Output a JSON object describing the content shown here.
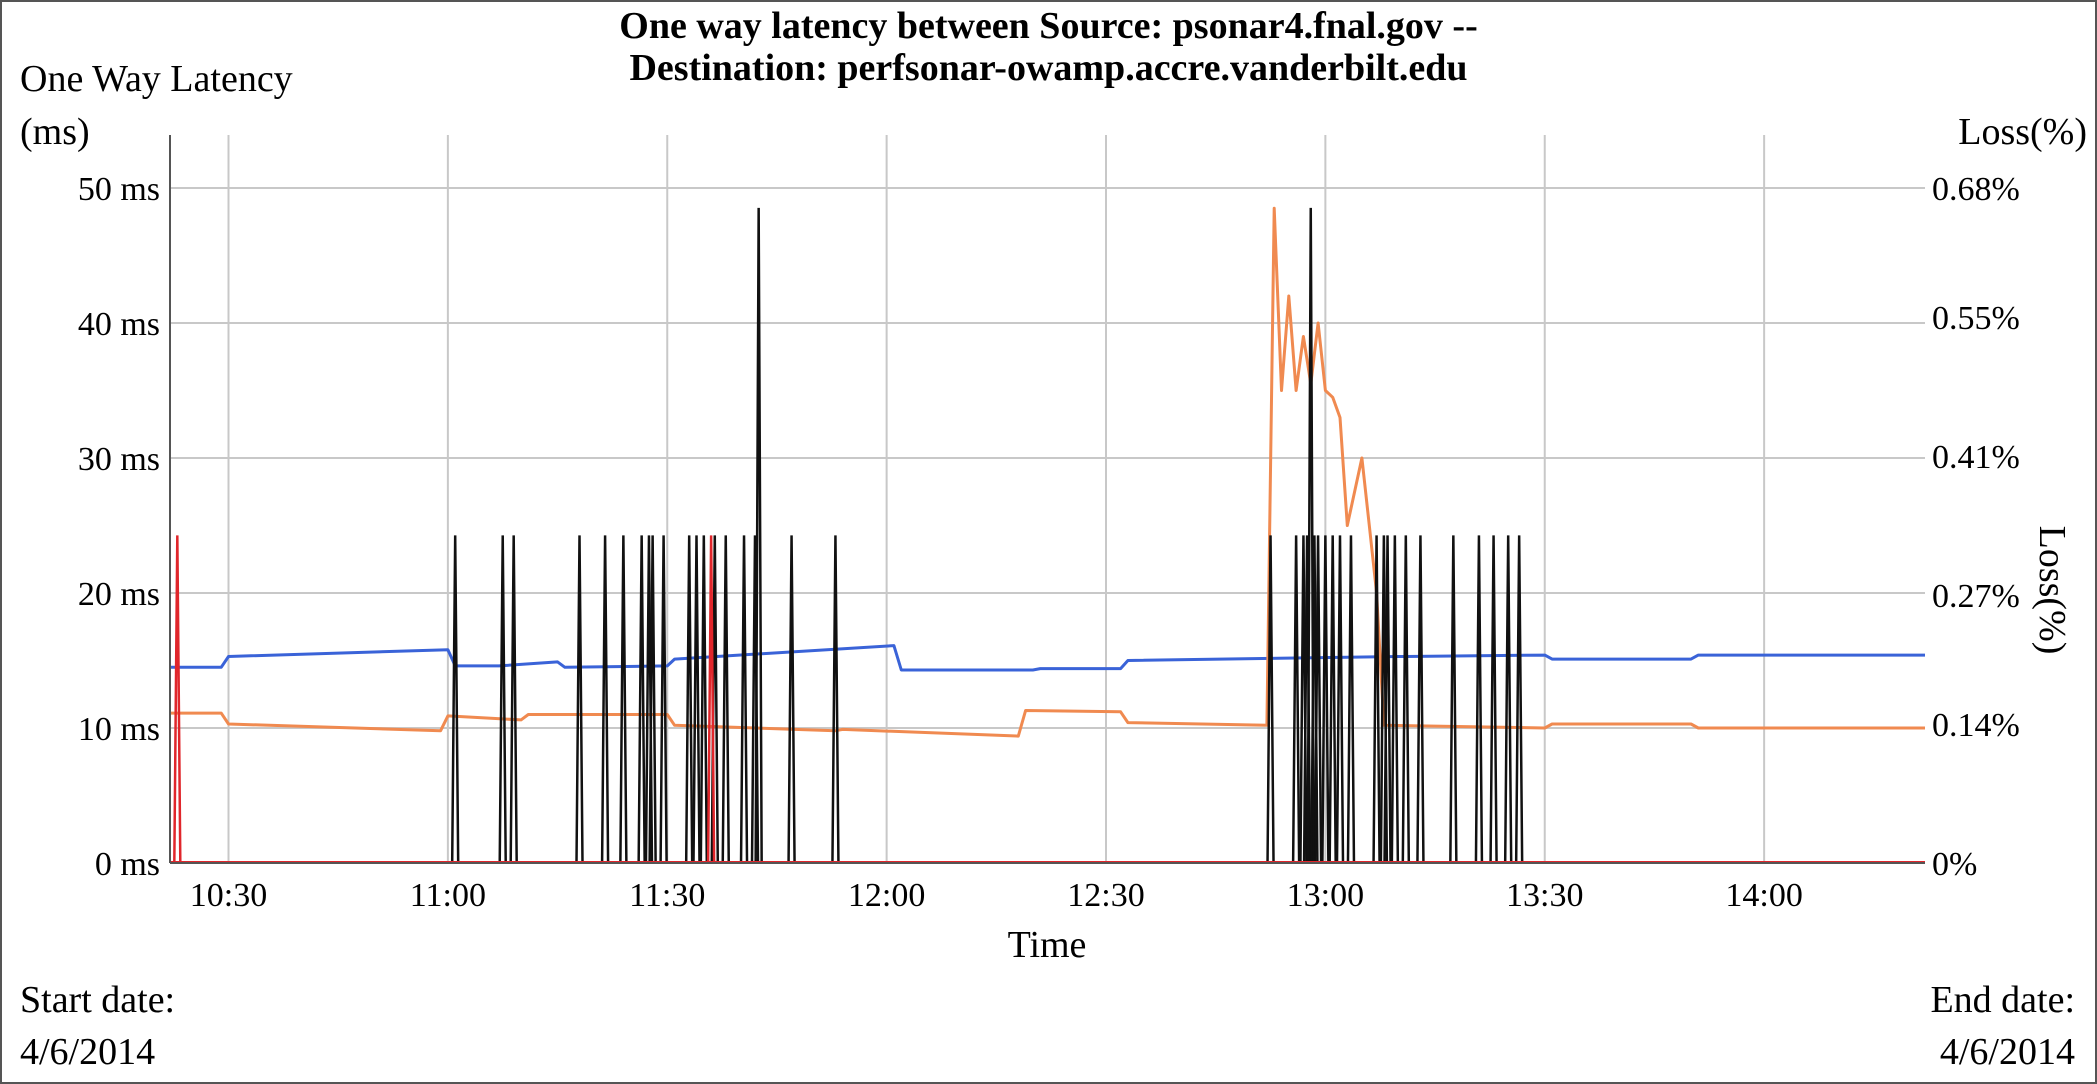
{
  "page": {
    "start_label": "Start date:",
    "start_value": "4/6/2014",
    "end_label": "End date:",
    "end_value": "4/6/2014"
  },
  "chart_data": {
    "type": "line",
    "title_line1": "One way latency between Source: psonar4.fnal.gov --",
    "title_line2": "Destination: perfsonar-owamp.accre.vanderbilt.edu",
    "ylabel_line1": "One Way Latency",
    "ylabel_line2": "(ms)",
    "ylabel_right_top": "Loss(%)",
    "ylabel_right_side": "Loss(%)",
    "xlabel": "Time",
    "x_unit": "minutes after midnight (time of day)",
    "xlim": [
      622,
      862
    ],
    "ylim": [
      0,
      50
    ],
    "y2lim": [
      0,
      0.68
    ],
    "y_ticks": [
      0,
      10,
      20,
      30,
      40,
      50
    ],
    "y_tick_labels": [
      "0 ms",
      "10 ms",
      "20 ms",
      "30 ms",
      "40 ms",
      "50 ms"
    ],
    "y2_ticks": [
      0,
      0.14,
      0.27,
      0.41,
      0.55,
      0.68
    ],
    "y2_tick_labels": [
      "0%",
      "0.14%",
      "0.27%",
      "0.41%",
      "0.55%",
      "0.68%"
    ],
    "x_ticks": [
      630,
      660,
      690,
      720,
      750,
      780,
      810,
      840
    ],
    "x_tick_labels": [
      "10:30",
      "11:00",
      "11:30",
      "12:00",
      "12:30",
      "13:00",
      "13:30",
      "14:00"
    ],
    "grid": true,
    "colors": {
      "blue": "#3a63d8",
      "orange": "#f08a50",
      "black": "#111111",
      "red": "#e0262b",
      "grid": "#c8c8c8"
    },
    "series": [
      {
        "color": "blue",
        "axis": "left",
        "x": [
          622,
          629,
          630,
          660,
          661,
          667,
          675,
          676,
          690,
          691,
          721,
          722,
          740,
          741,
          752,
          753,
          790,
          791,
          810,
          811,
          830,
          831,
          862
        ],
        "y": [
          14.5,
          14.5,
          15.3,
          15.8,
          14.6,
          14.6,
          14.9,
          14.5,
          14.6,
          15.1,
          16.1,
          14.3,
          14.3,
          14.4,
          14.4,
          15.0,
          15.3,
          15.3,
          15.4,
          15.1,
          15.1,
          15.4,
          15.4
        ]
      },
      {
        "color": "orange",
        "axis": "left",
        "x": [
          622,
          629,
          630,
          659,
          660,
          670,
          671,
          690,
          691,
          713,
          714,
          738,
          739,
          752,
          753,
          772,
          773,
          774,
          775,
          776,
          777,
          778,
          779,
          780,
          781,
          782,
          783,
          785,
          786,
          787,
          788,
          810,
          811,
          830,
          831,
          862
        ],
        "y": [
          11.1,
          11.1,
          10.3,
          9.8,
          10.9,
          10.6,
          11.0,
          11.0,
          10.2,
          9.8,
          9.9,
          9.4,
          11.3,
          11.2,
          10.4,
          10.2,
          48.5,
          35.0,
          42.0,
          35.0,
          39.0,
          35.5,
          40.0,
          35.0,
          34.5,
          33.0,
          25.0,
          30.0,
          25.0,
          20.0,
          10.2,
          10.0,
          10.3,
          10.3,
          10.0,
          10.0
        ]
      },
      {
        "color": "black",
        "axis": "right",
        "kind": "spikes",
        "peak": 0.33,
        "tall_peak": 0.66,
        "x": [
          661,
          667.5,
          669,
          678,
          681.5,
          684,
          686.5,
          687.5,
          688,
          689.5,
          693,
          694,
          695,
          696.5,
          698,
          700.5,
          702,
          707,
          713,
          772.5,
          776,
          777,
          777.5,
          778.5,
          779,
          780,
          781,
          782,
          783.5,
          787,
          788,
          788.5,
          789.5,
          791,
          793,
          797.5,
          801,
          803,
          805,
          806.5
        ],
        "tall_x": [
          702.5,
          778
        ]
      },
      {
        "color": "red",
        "axis": "right",
        "kind": "spikes",
        "peak": 0.33,
        "x": [
          623,
          696
        ]
      }
    ]
  }
}
